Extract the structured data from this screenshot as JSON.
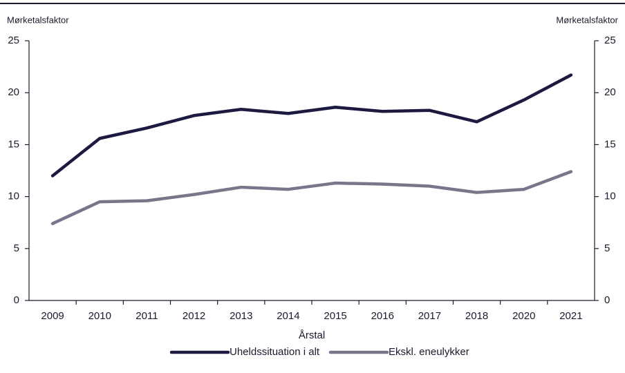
{
  "chart_data": {
    "type": "line",
    "y_label": "Mørketalsfaktor",
    "y2_label": "Mørketalsfaktor",
    "x_label": "Årstal",
    "categories": [
      "2009",
      "2010",
      "2011",
      "2012",
      "2013",
      "2014",
      "2015",
      "2016",
      "2017",
      "2018",
      "2020",
      "2021"
    ],
    "series": [
      {
        "name": "Uheldssituation i alt",
        "color": "#1c1a40",
        "values": [
          12.0,
          15.6,
          16.6,
          17.8,
          18.4,
          18.0,
          18.6,
          18.2,
          18.3,
          17.2,
          19.3,
          21.7
        ]
      },
      {
        "name": "Ekskl. eneulykker",
        "color": "#77778b",
        "values": [
          7.4,
          9.5,
          9.6,
          10.2,
          10.9,
          10.7,
          11.3,
          11.2,
          11.0,
          10.4,
          10.7,
          12.4
        ]
      }
    ],
    "ylim": [
      0,
      25
    ],
    "yticks": [
      0,
      5,
      10,
      15,
      20,
      25
    ],
    "y2lim": [
      0,
      25
    ],
    "y2ticks": [
      0,
      5,
      10,
      15,
      20,
      25
    ],
    "legend": "bottom"
  }
}
